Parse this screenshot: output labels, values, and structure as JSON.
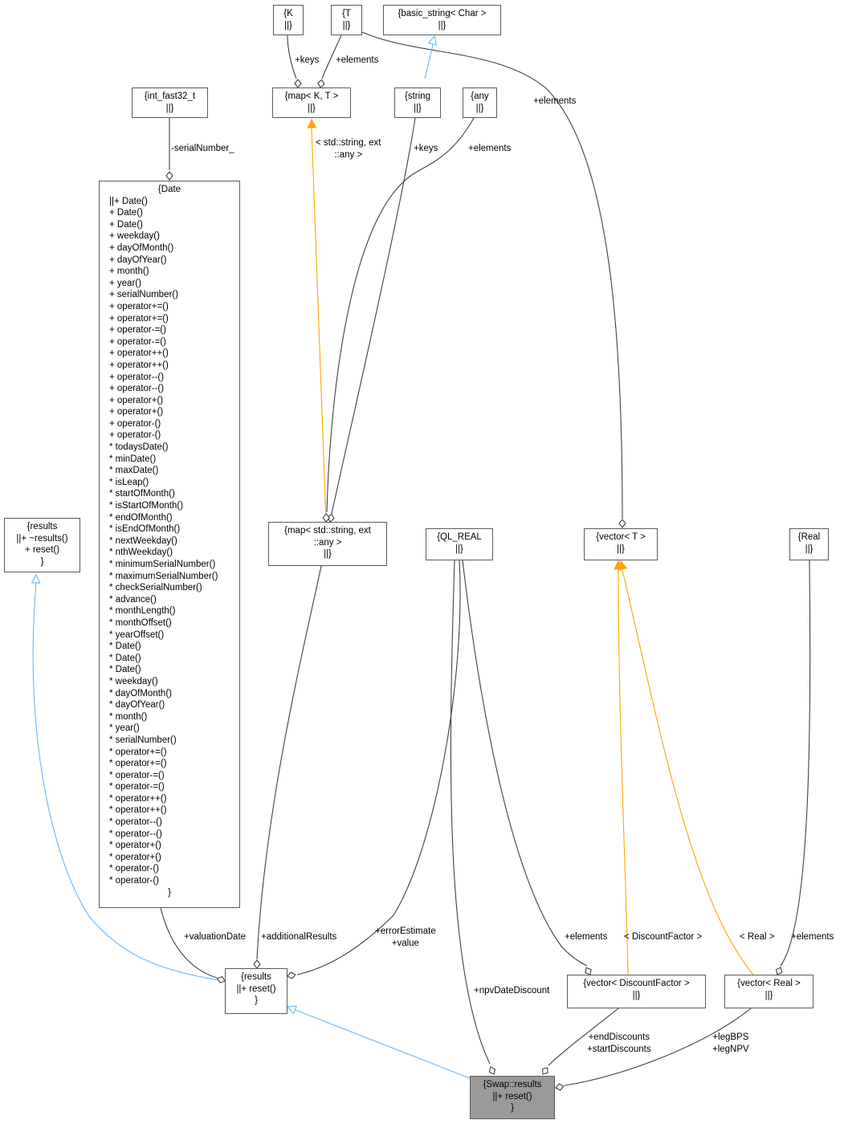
{
  "nodes": {
    "swap_results": {
      "lines": [
        "{Swap::results",
        "||+ reset()",
        "}"
      ]
    },
    "results_base": {
      "lines": [
        "{results",
        "||+ reset()",
        "}"
      ]
    },
    "results_root": {
      "lines": [
        "{results",
        "||+ ~results()",
        "+ reset()",
        "}"
      ]
    },
    "date": {
      "lines": [
        "{Date",
        "||+ Date()",
        "+ Date()",
        "+ Date()",
        "+ weekday()",
        "+ dayOfMonth()",
        "+ dayOfYear()",
        "+ month()",
        "+ year()",
        "+ serialNumber()",
        "+ operator+=()",
        "+ operator+=()",
        "+ operator-=()",
        "+ operator-=()",
        "+ operator++()",
        "+ operator++()",
        "+ operator--()",
        "+ operator--()",
        "+ operator+()",
        "+ operator+()",
        "+ operator-()",
        "+ operator-()",
        "* todaysDate()",
        "* minDate()",
        "* maxDate()",
        "* isLeap()",
        "* startOfMonth()",
        "* isStartOfMonth()",
        "* endOfMonth()",
        "* isEndOfMonth()",
        "* nextWeekday()",
        "* nthWeekday()",
        "* minimumSerialNumber()",
        "* maximumSerialNumber()",
        "* checkSerialNumber()",
        "* advance()",
        "* monthLength()",
        "* monthOffset()",
        "* yearOffset()",
        "* Date()",
        "* Date()",
        "* Date()",
        "* weekday()",
        "* dayOfMonth()",
        "* dayOfYear()",
        "* month()",
        "* year()",
        "* serialNumber()",
        "* operator+=()",
        "* operator+=()",
        "* operator-=()",
        "* operator-=()",
        "* operator++()",
        "* operator++()",
        "* operator--()",
        "* operator--()",
        "* operator+()",
        "* operator+()",
        "* operator-()",
        "* operator-()",
        "}"
      ]
    },
    "int_fast32": {
      "lines": [
        "{int_fast32_t",
        "||}"
      ]
    },
    "map_string_any": {
      "lines": [
        "{map< std::string, ext",
        "::any >",
        "||}"
      ]
    },
    "map_kt": {
      "lines": [
        "{map< K, T >",
        "||}"
      ]
    },
    "k": {
      "lines": [
        "{K",
        "||}"
      ]
    },
    "t": {
      "lines": [
        "{T",
        "||}"
      ]
    },
    "basic_string": {
      "lines": [
        "{basic_string< Char >",
        "||}"
      ]
    },
    "string": {
      "lines": [
        "{string",
        "||}"
      ]
    },
    "any": {
      "lines": [
        "{any",
        "||}"
      ]
    },
    "ql_real": {
      "lines": [
        "{QL_REAL",
        "||}"
      ]
    },
    "vector_t": {
      "lines": [
        "{vector< T >",
        "||}"
      ]
    },
    "real": {
      "lines": [
        "{Real",
        "||}"
      ]
    },
    "vector_df": {
      "lines": [
        "{vector< DiscountFactor >",
        "||}"
      ]
    },
    "vector_real": {
      "lines": [
        "{vector< Real >",
        "||}"
      ]
    }
  },
  "edge_labels": {
    "keys_k": "+keys",
    "elements_t_map": "+elements",
    "elements_t_vec": "+elements",
    "map_template_args": "< std::string, ext\n::any >",
    "keys_string": "+keys",
    "elements_any": "+elements",
    "serial_number": "-serialNumber_",
    "valuation_date": "+valuationDate",
    "additional_results": "+additionalResults",
    "error_value": "+errorEstimate\n+value",
    "npv_date_discount": "+npvDateDiscount",
    "elements_df": "+elements",
    "discount_factor_arg": "< DiscountFactor >",
    "real_arg": "< Real >",
    "elements_real": "+elements",
    "end_start_discounts": "+endDiscounts\n+startDiscounts",
    "leg_bps_npv": "+legBPS\n+legNPV"
  },
  "colors": {
    "composition": "#404040",
    "inheritance": "#63b8ff",
    "template": "#ffa500",
    "highlight_fill": "#9a9a9a"
  }
}
